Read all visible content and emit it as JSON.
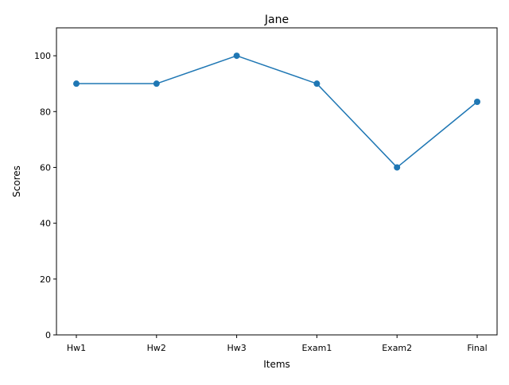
{
  "chart_data": {
    "type": "line",
    "title": "Jane",
    "xlabel": "Items",
    "ylabel": "Scores",
    "categories": [
      "Hw1",
      "Hw2",
      "Hw3",
      "Exam1",
      "Exam2",
      "Final"
    ],
    "series": [
      {
        "values": [
          90,
          90,
          100,
          90,
          60,
          83.5
        ],
        "color": "#1f77b4",
        "marker": "circle"
      }
    ],
    "ylim": [
      0,
      110
    ],
    "yticks": [
      0,
      20,
      40,
      60,
      80,
      100
    ],
    "grid": false,
    "legend": "none"
  }
}
